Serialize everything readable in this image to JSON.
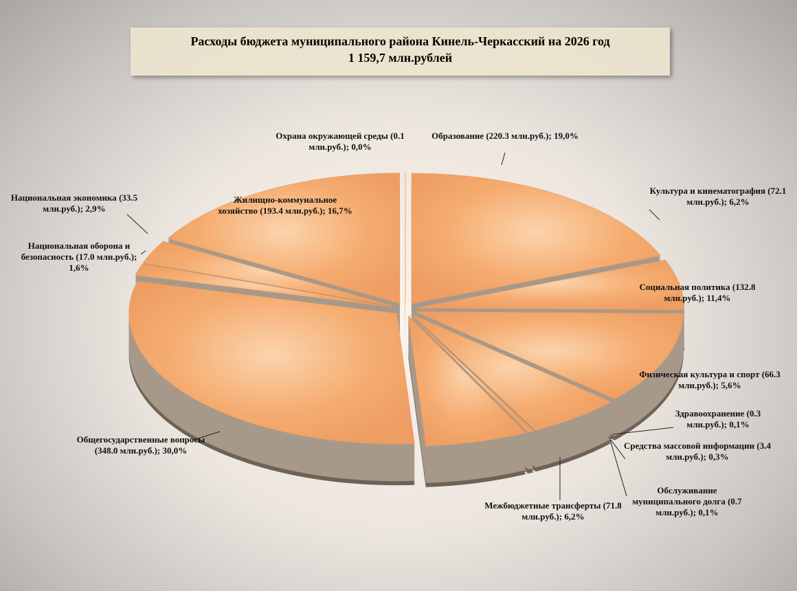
{
  "chart_data": {
    "type": "pie3d",
    "title": "Расходы бюджета муниципального района Кинель-Черкасский на 2026 год",
    "subtitle": "1 159,7  млн.рублей",
    "color": "#f5a86a",
    "categories": [
      "Образование",
      "Культура и кинематография",
      "Социальная политика",
      "Физическая культура и спорт",
      "Здравоохранение",
      "Средства массовой информации",
      "Обслуживание муниципального долга",
      "Межбюджетные трансферты",
      "Общегосударственные вопросы",
      "Национальная оборона и безопасность",
      "Национальная экономика",
      "Жилищно-коммунальное хозяйство",
      "Охрана окружающей среды"
    ],
    "values": [
      220.3,
      72.1,
      132.8,
      66.3,
      0.3,
      3.4,
      0.7,
      71.8,
      348.0,
      17.0,
      33.5,
      193.4,
      0.1
    ],
    "value_labels": [
      "(220.3 млн.руб.); 19,0%",
      "(72.1 млн.руб.); 6,2%",
      "(132.8 млн.руб.); 11,4%",
      "(66.3 млн.руб.); 5,6%",
      "(0.3 млн.руб.); 0,1%",
      "(3.4 млн.руб.); 0,3%",
      "(0.7 млн.руб.); 0,1%",
      "(71.8 млн.руб.); 6,2%",
      "(348.0 млн.руб.); 30,0%",
      "(17.0 млн.руб.); 1,6%",
      "(33.5 млн.руб.); 2,9%",
      "(193.4 млн.руб.); 16,7%",
      "(0.1 млн.руб.); 0,0%"
    ]
  }
}
